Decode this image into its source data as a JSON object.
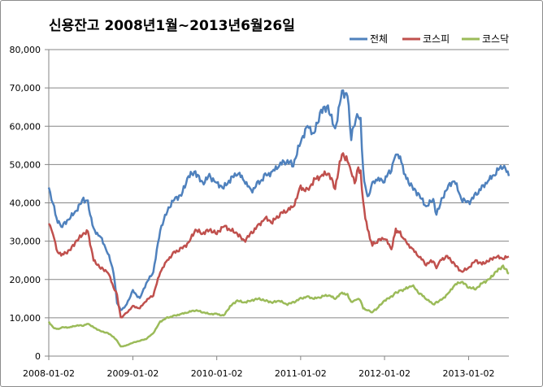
{
  "chart_data": {
    "type": "line",
    "title": "신용잔고 2008년1월~2013년6월26일",
    "xlabel": "",
    "ylabel": "",
    "ylim": [
      0,
      80000
    ],
    "y_ticks": [
      "0",
      "10,000",
      "20,000",
      "30,000",
      "40,000",
      "50,000",
      "60,000",
      "70,000",
      "80,000"
    ],
    "x_ticks": [
      "2008-01-02",
      "2009-01-02",
      "2010-01-02",
      "2011-01-02",
      "2012-01-02",
      "2013-01-02"
    ],
    "x_range": [
      "2008-01-02",
      "2013-06-26"
    ],
    "grid": "horizontal",
    "legend_position": "top-right",
    "series": [
      {
        "name": "전체",
        "color": "#4f81bd",
        "points": [
          [
            "2008-01-02",
            44000
          ],
          [
            "2008-01-20",
            40000
          ],
          [
            "2008-02-10",
            35000
          ],
          [
            "2008-03-01",
            34000
          ],
          [
            "2008-04-01",
            36000
          ],
          [
            "2008-05-01",
            38000
          ],
          [
            "2008-06-01",
            41000
          ],
          [
            "2008-06-20",
            40000
          ],
          [
            "2008-07-15",
            33000
          ],
          [
            "2008-08-15",
            31000
          ],
          [
            "2008-09-15",
            27000
          ],
          [
            "2008-10-10",
            22000
          ],
          [
            "2008-10-25",
            14000
          ],
          [
            "2008-11-10",
            12000
          ],
          [
            "2008-12-01",
            13000
          ],
          [
            "2009-01-02",
            17000
          ],
          [
            "2009-02-01",
            15000
          ],
          [
            "2009-03-01",
            19000
          ],
          [
            "2009-04-01",
            22000
          ],
          [
            "2009-05-01",
            33000
          ],
          [
            "2009-06-01",
            38000
          ],
          [
            "2009-07-01",
            41000
          ],
          [
            "2009-08-01",
            42000
          ],
          [
            "2009-09-01",
            47000
          ],
          [
            "2009-10-01",
            48000
          ],
          [
            "2009-11-01",
            45000
          ],
          [
            "2009-12-01",
            47000
          ],
          [
            "2010-01-02",
            45000
          ],
          [
            "2010-02-01",
            44000
          ],
          [
            "2010-03-01",
            46000
          ],
          [
            "2010-04-01",
            48000
          ],
          [
            "2010-05-01",
            46000
          ],
          [
            "2010-06-01",
            43000
          ],
          [
            "2010-07-01",
            45000
          ],
          [
            "2010-08-01",
            47000
          ],
          [
            "2010-09-01",
            48000
          ],
          [
            "2010-10-01",
            50000
          ],
          [
            "2010-11-01",
            51000
          ],
          [
            "2010-12-01",
            50000
          ],
          [
            "2011-01-02",
            56000
          ],
          [
            "2011-02-01",
            60000
          ],
          [
            "2011-03-01",
            58000
          ],
          [
            "2011-04-01",
            64000
          ],
          [
            "2011-05-01",
            65000
          ],
          [
            "2011-06-01",
            59000
          ],
          [
            "2011-07-01",
            69000
          ],
          [
            "2011-07-25",
            68000
          ],
          [
            "2011-08-10",
            57000
          ],
          [
            "2011-08-25",
            61000
          ],
          [
            "2011-09-10",
            63000
          ],
          [
            "2011-09-20",
            62000
          ],
          [
            "2011-10-01",
            48000
          ],
          [
            "2011-10-20",
            41000
          ],
          [
            "2011-11-10",
            45000
          ],
          [
            "2011-12-01",
            46000
          ],
          [
            "2012-01-02",
            46000
          ],
          [
            "2012-02-01",
            49000
          ],
          [
            "2012-02-20",
            53000
          ],
          [
            "2012-03-10",
            52000
          ],
          [
            "2012-04-01",
            47000
          ],
          [
            "2012-05-01",
            44000
          ],
          [
            "2012-06-01",
            42000
          ],
          [
            "2012-07-01",
            39000
          ],
          [
            "2012-08-01",
            41000
          ],
          [
            "2012-08-15",
            37000
          ],
          [
            "2012-09-01",
            40000
          ],
          [
            "2012-10-01",
            44000
          ],
          [
            "2012-11-01",
            46000
          ],
          [
            "2012-12-01",
            41000
          ],
          [
            "2013-01-02",
            40000
          ],
          [
            "2013-02-01",
            42000
          ],
          [
            "2013-03-01",
            44000
          ],
          [
            "2013-04-01",
            46000
          ],
          [
            "2013-05-01",
            48000
          ],
          [
            "2013-06-01",
            50000
          ],
          [
            "2013-06-26",
            47000
          ]
        ]
      },
      {
        "name": "코스피",
        "color": "#c0504d",
        "points": [
          [
            "2008-01-02",
            35000
          ],
          [
            "2008-01-20",
            32000
          ],
          [
            "2008-02-10",
            27000
          ],
          [
            "2008-03-01",
            26500
          ],
          [
            "2008-04-01",
            27500
          ],
          [
            "2008-05-01",
            30000
          ],
          [
            "2008-06-01",
            32000
          ],
          [
            "2008-06-20",
            32500
          ],
          [
            "2008-07-15",
            25000
          ],
          [
            "2008-08-15",
            23000
          ],
          [
            "2008-09-15",
            22000
          ],
          [
            "2008-10-10",
            18000
          ],
          [
            "2008-10-25",
            16000
          ],
          [
            "2008-11-10",
            10000
          ],
          [
            "2008-12-01",
            11000
          ],
          [
            "2009-01-02",
            13000
          ],
          [
            "2009-02-01",
            12500
          ],
          [
            "2009-03-01",
            14500
          ],
          [
            "2009-04-01",
            16000
          ],
          [
            "2009-05-01",
            22000
          ],
          [
            "2009-06-01",
            25000
          ],
          [
            "2009-07-01",
            27000
          ],
          [
            "2009-08-01",
            28000
          ],
          [
            "2009-09-01",
            29500
          ],
          [
            "2009-10-01",
            33000
          ],
          [
            "2009-11-01",
            32000
          ],
          [
            "2009-12-01",
            33000
          ],
          [
            "2010-01-02",
            32000
          ],
          [
            "2010-02-01",
            34000
          ],
          [
            "2010-03-01",
            33000
          ],
          [
            "2010-04-01",
            32000
          ],
          [
            "2010-05-01",
            30000
          ],
          [
            "2010-06-01",
            32000
          ],
          [
            "2010-07-01",
            34000
          ],
          [
            "2010-08-01",
            36000
          ],
          [
            "2010-09-01",
            35000
          ],
          [
            "2010-10-01",
            37000
          ],
          [
            "2010-11-01",
            38000
          ],
          [
            "2010-12-01",
            39000
          ],
          [
            "2011-01-02",
            44000
          ],
          [
            "2011-02-01",
            43000
          ],
          [
            "2011-03-01",
            46000
          ],
          [
            "2011-04-01",
            47000
          ],
          [
            "2011-05-01",
            48000
          ],
          [
            "2011-06-01",
            44000
          ],
          [
            "2011-07-01",
            53000
          ],
          [
            "2011-07-25",
            51000
          ],
          [
            "2011-08-10",
            48000
          ],
          [
            "2011-08-25",
            45000
          ],
          [
            "2011-09-10",
            49000
          ],
          [
            "2011-09-20",
            48000
          ],
          [
            "2011-10-01",
            40000
          ],
          [
            "2011-10-20",
            33000
          ],
          [
            "2011-11-10",
            29000
          ],
          [
            "2011-12-01",
            30000
          ],
          [
            "2012-01-02",
            31000
          ],
          [
            "2012-02-01",
            28000
          ],
          [
            "2012-02-20",
            33000
          ],
          [
            "2012-03-10",
            32000
          ],
          [
            "2012-04-01",
            30000
          ],
          [
            "2012-05-01",
            28000
          ],
          [
            "2012-06-01",
            26000
          ],
          [
            "2012-07-01",
            24000
          ],
          [
            "2012-08-01",
            25000
          ],
          [
            "2012-08-15",
            23000
          ],
          [
            "2012-09-01",
            25000
          ],
          [
            "2012-10-01",
            26000
          ],
          [
            "2012-11-01",
            24000
          ],
          [
            "2012-12-01",
            22000
          ],
          [
            "2013-01-02",
            23000
          ],
          [
            "2013-02-01",
            25000
          ],
          [
            "2013-03-01",
            24000
          ],
          [
            "2013-04-01",
            25000
          ],
          [
            "2013-05-01",
            26000
          ],
          [
            "2013-06-01",
            25500
          ],
          [
            "2013-06-26",
            26000
          ]
        ]
      },
      {
        "name": "코스닥",
        "color": "#9bbb59",
        "points": [
          [
            "2008-01-02",
            9000
          ],
          [
            "2008-01-20",
            7500
          ],
          [
            "2008-02-10",
            7000
          ],
          [
            "2008-03-01",
            7500
          ],
          [
            "2008-04-01",
            7500
          ],
          [
            "2008-05-01",
            8000
          ],
          [
            "2008-06-01",
            8000
          ],
          [
            "2008-06-20",
            8500
          ],
          [
            "2008-07-15",
            7500
          ],
          [
            "2008-08-15",
            6500
          ],
          [
            "2008-09-15",
            6000
          ],
          [
            "2008-10-10",
            5000
          ],
          [
            "2008-10-25",
            4000
          ],
          [
            "2008-11-10",
            2500
          ],
          [
            "2008-12-01",
            2700
          ],
          [
            "2009-01-02",
            3500
          ],
          [
            "2009-02-01",
            4000
          ],
          [
            "2009-03-01",
            4500
          ],
          [
            "2009-04-01",
            6000
          ],
          [
            "2009-05-01",
            9000
          ],
          [
            "2009-06-01",
            10000
          ],
          [
            "2009-07-01",
            10500
          ],
          [
            "2009-08-01",
            11000
          ],
          [
            "2009-09-01",
            11500
          ],
          [
            "2009-10-01",
            12000
          ],
          [
            "2009-11-01",
            11500
          ],
          [
            "2009-12-01",
            11000
          ],
          [
            "2010-01-02",
            11000
          ],
          [
            "2010-02-01",
            10500
          ],
          [
            "2010-03-01",
            13000
          ],
          [
            "2010-04-01",
            14500
          ],
          [
            "2010-05-01",
            14000
          ],
          [
            "2010-06-01",
            14500
          ],
          [
            "2010-07-01",
            15000
          ],
          [
            "2010-08-01",
            14500
          ],
          [
            "2010-09-01",
            14000
          ],
          [
            "2010-10-01",
            14500
          ],
          [
            "2010-11-01",
            13500
          ],
          [
            "2010-12-01",
            14000
          ],
          [
            "2011-01-02",
            15000
          ],
          [
            "2011-02-01",
            15500
          ],
          [
            "2011-03-01",
            15000
          ],
          [
            "2011-04-01",
            15500
          ],
          [
            "2011-05-01",
            16000
          ],
          [
            "2011-06-01",
            15000
          ],
          [
            "2011-07-01",
            16500
          ],
          [
            "2011-07-25",
            16000
          ],
          [
            "2011-08-10",
            14000
          ],
          [
            "2011-08-25",
            14500
          ],
          [
            "2011-09-10",
            15000
          ],
          [
            "2011-09-20",
            14500
          ],
          [
            "2011-10-01",
            12500
          ],
          [
            "2011-10-20",
            12000
          ],
          [
            "2011-11-10",
            11500
          ],
          [
            "2011-12-01",
            12500
          ],
          [
            "2012-01-02",
            14500
          ],
          [
            "2012-02-01",
            15500
          ],
          [
            "2012-02-20",
            16500
          ],
          [
            "2012-03-10",
            17000
          ],
          [
            "2012-04-01",
            17500
          ],
          [
            "2012-05-01",
            18500
          ],
          [
            "2012-06-01",
            16500
          ],
          [
            "2012-07-01",
            15000
          ],
          [
            "2012-08-01",
            13500
          ],
          [
            "2012-08-15",
            14000
          ],
          [
            "2012-09-01",
            14500
          ],
          [
            "2012-10-01",
            16000
          ],
          [
            "2012-11-01",
            18500
          ],
          [
            "2012-12-01",
            19500
          ],
          [
            "2013-01-02",
            18000
          ],
          [
            "2013-02-01",
            17500
          ],
          [
            "2013-03-01",
            19000
          ],
          [
            "2013-04-01",
            20000
          ],
          [
            "2013-05-01",
            22000
          ],
          [
            "2013-06-01",
            23500
          ],
          [
            "2013-06-26",
            21500
          ]
        ]
      }
    ]
  }
}
